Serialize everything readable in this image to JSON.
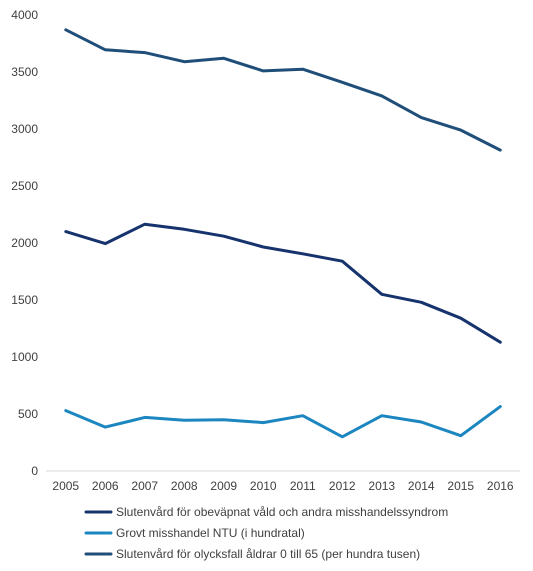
{
  "chart_data": {
    "type": "line",
    "title": "",
    "xlabel": "",
    "ylabel": "",
    "x": [
      "2005",
      "2006",
      "2007",
      "2008",
      "2009",
      "2010",
      "2011",
      "2012",
      "2013",
      "2014",
      "2015",
      "2016"
    ],
    "ylim": [
      0,
      4000
    ],
    "yticks": [
      0,
      500,
      1000,
      1500,
      2000,
      2500,
      3000,
      3500,
      4000
    ],
    "grid": false,
    "legend_position": "bottom",
    "series": [
      {
        "name": "Slutenvård för obeväpnat våld och andra misshandelssyndrom",
        "color": "#16336e",
        "values": [
          2100,
          1995,
          2165,
          2120,
          2060,
          1965,
          1905,
          1840,
          1550,
          1480,
          1340,
          1130
        ]
      },
      {
        "name": "Grovt misshandel NTU (i hundratal)",
        "color": "#1b86bf",
        "values": [
          530,
          385,
          470,
          445,
          450,
          425,
          485,
          300,
          485,
          430,
          310,
          565
        ]
      },
      {
        "name": "Slutenvård för olycksfall åldrar 0 till 65 (per hundra tusen)",
        "color": "#1f4e79",
        "values": [
          3870,
          3695,
          3670,
          3590,
          3620,
          3510,
          3525,
          3410,
          3290,
          3100,
          2990,
          2815
        ]
      }
    ]
  }
}
